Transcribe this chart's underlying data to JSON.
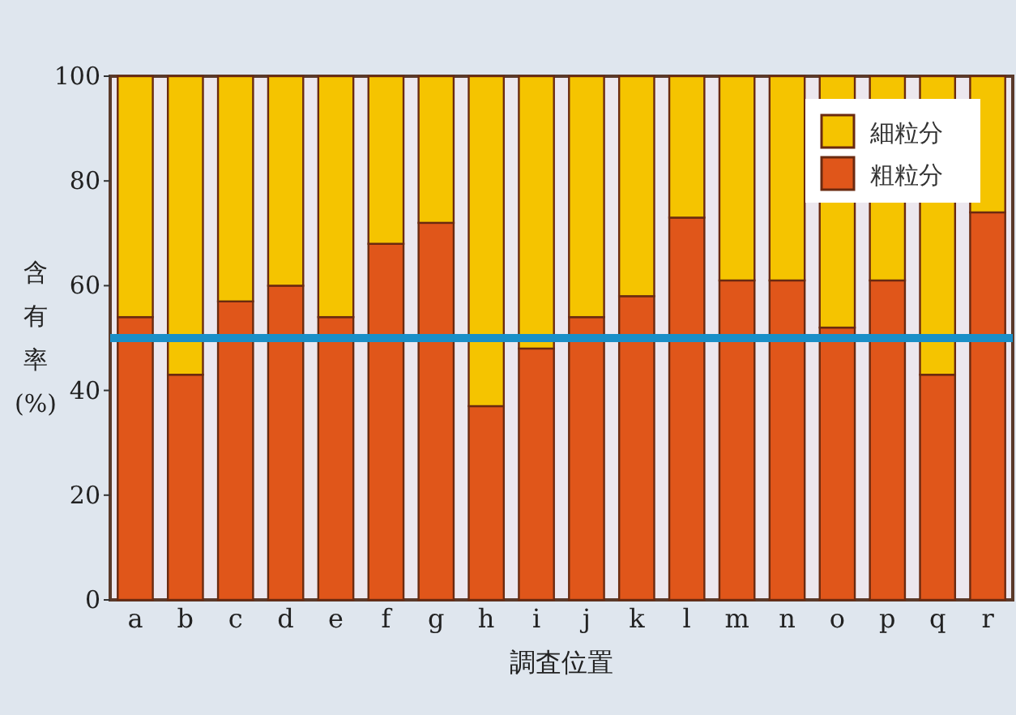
{
  "chart_data": {
    "type": "bar",
    "stacked": true,
    "ylabel": "含有率(%)",
    "xlabel": "調査位置",
    "categories": [
      "a",
      "b",
      "c",
      "d",
      "e",
      "f",
      "g",
      "h",
      "i",
      "j",
      "k",
      "l",
      "m",
      "n",
      "o",
      "p",
      "q",
      "r"
    ],
    "series": [
      {
        "name": "粗粒分",
        "color": "#e0561a",
        "values": [
          54,
          43,
          57,
          60,
          54,
          68,
          72,
          37,
          48,
          54,
          58,
          73,
          61,
          61,
          52,
          61,
          43,
          74
        ]
      },
      {
        "name": "細粒分",
        "color": "#f5c400",
        "values": [
          46,
          57,
          43,
          40,
          46,
          32,
          28,
          63,
          52,
          46,
          42,
          27,
          39,
          39,
          48,
          39,
          57,
          26
        ]
      }
    ],
    "ylim": [
      0,
      100
    ],
    "yticks": [
      0,
      20,
      40,
      60,
      80,
      100
    ],
    "ref_lines": [
      {
        "axis": "y",
        "value": 50,
        "color": "#1a8fc8"
      }
    ],
    "legend": "top right"
  }
}
